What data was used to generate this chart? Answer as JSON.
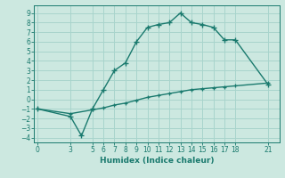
{
  "title": "",
  "xlabel": "Humidex (Indice chaleur)",
  "bg_color": "#cce8e0",
  "line_color": "#1a7a6e",
  "grid_color": "#a8d4cc",
  "line1_x": [
    0,
    3,
    4,
    5,
    6,
    7,
    8,
    9,
    10,
    11,
    12,
    13,
    14,
    15,
    16,
    17,
    18,
    21
  ],
  "line1_y": [
    -1,
    -1.8,
    -3.8,
    -1,
    1,
    3,
    3.8,
    6,
    7.5,
    7.8,
    8,
    9,
    8,
    7.8,
    7.5,
    6.2,
    6.2,
    1.5
  ],
  "line2_x": [
    0,
    3,
    5,
    6,
    7,
    8,
    9,
    10,
    11,
    12,
    13,
    14,
    15,
    16,
    17,
    18,
    21
  ],
  "line2_y": [
    -1,
    -1.5,
    -1.1,
    -0.9,
    -0.6,
    -0.4,
    -0.1,
    0.2,
    0.4,
    0.6,
    0.8,
    1.0,
    1.1,
    1.2,
    1.3,
    1.4,
    1.7
  ],
  "ylim": [
    -4.5,
    9.8
  ],
  "yticks": [
    -4,
    -3,
    -2,
    -1,
    0,
    1,
    2,
    3,
    4,
    5,
    6,
    7,
    8,
    9
  ],
  "xticks": [
    0,
    3,
    5,
    6,
    7,
    8,
    9,
    10,
    11,
    12,
    13,
    14,
    15,
    16,
    17,
    18,
    21
  ],
  "xlim": [
    -0.3,
    22.0
  ],
  "tick_fontsize": 5.5,
  "xlabel_fontsize": 6.5
}
